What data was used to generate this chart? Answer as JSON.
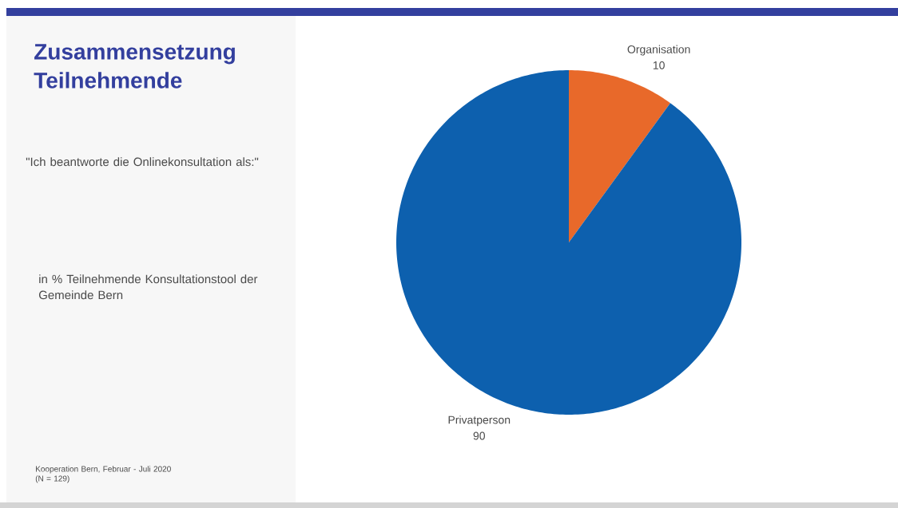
{
  "chart_data": {
    "type": "pie",
    "title": "Zusammensetzung Teilnehmende",
    "subtitle": "\"Ich beantworte die Onlinekonsultation als:\"",
    "categories": [
      "Organisation",
      "Privatperson"
    ],
    "values": [
      10,
      90
    ],
    "colors": [
      "#e8692a",
      "#0d60ae"
    ],
    "data_labels": true,
    "annotations": [
      "in % Teilnehmende Konsultationstool der Gemeinde Bern",
      "Kooperation Bern, Februar - Juli 2020",
      "(N = 129)"
    ]
  }
}
